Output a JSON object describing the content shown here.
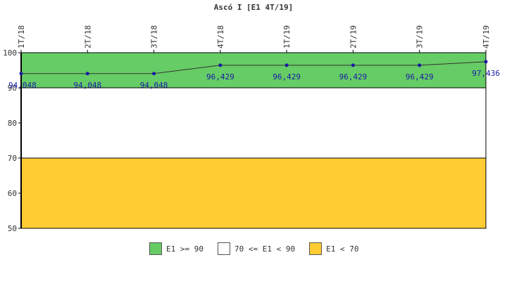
{
  "chart_data": {
    "type": "line",
    "title": "Ascó I [E1 4T/19]",
    "categories": [
      "1T/18",
      "2T/18",
      "3T/18",
      "4T/18",
      "1T/19",
      "2T/19",
      "3T/19",
      "4T/19"
    ],
    "series": [
      {
        "values": [
          94.048,
          94.048,
          94.048,
          96.429,
          96.429,
          96.429,
          96.429,
          97.436
        ],
        "labels": [
          "94,048",
          "94,048",
          "94,048",
          "96,429",
          "96,429",
          "96,429",
          "96,429",
          "97,436"
        ],
        "color": "#1a1aa6"
      }
    ],
    "ylim": [
      50,
      100
    ],
    "yticks": [
      "50",
      "60",
      "70",
      "80",
      "90",
      "100"
    ],
    "bands": [
      {
        "from": 90,
        "to": 100,
        "color": "#66cc66",
        "legend": "E1 >= 90"
      },
      {
        "from": 70,
        "to": 90,
        "color": "#ffffff",
        "legend": "70 <= E1 < 90"
      },
      {
        "from": 50,
        "to": 70,
        "color": "#ffcc33",
        "legend": "E1 < 70"
      }
    ]
  }
}
